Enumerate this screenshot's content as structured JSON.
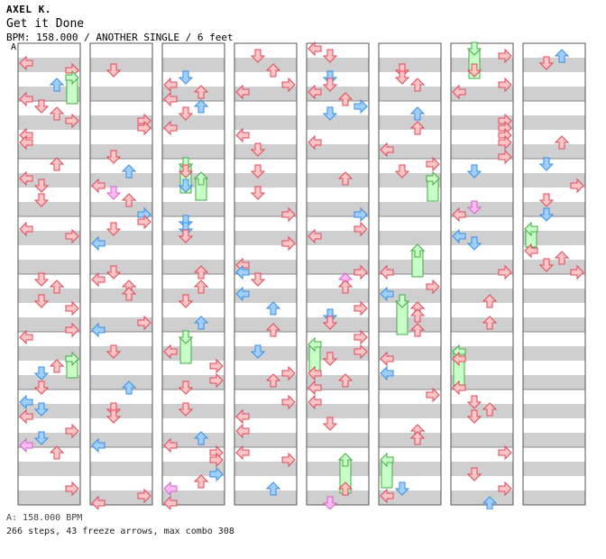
{
  "header": {
    "artist": "AXEL K.",
    "title": "Get it Done",
    "info": "BPM: 158.000 / ANOTHER SINGLE / 6 feet",
    "bpm_marker": "A"
  },
  "footer": {
    "bpm": "A: 158.000 BPM",
    "stats": "266 steps, 43 freeze arrows, max combo 308"
  },
  "colors": {
    "normal_arrow_fill": "#ffc4c4",
    "normal_arrow_stroke": "#e0475a",
    "blue_arrow_fill": "#9fcfff",
    "blue_arrow_stroke": "#3a8ee0",
    "pink_arrow_fill": "#ffb8f0",
    "pink_arrow_stroke": "#d064d0",
    "freeze_fill": "#c8ffc8",
    "freeze_stroke": "#44aa44",
    "stripe_gray": "#cfcfcf",
    "column_border": "#555555"
  },
  "chart_data": {
    "type": "step-chart",
    "columns": 8,
    "measures_per_column": 8,
    "lanes": [
      "left",
      "down",
      "up",
      "right"
    ],
    "arrows": [
      [
        0,
        0,
        2,
        "r"
      ],
      [
        0,
        0,
        1,
        "r"
      ],
      [
        0,
        1,
        2,
        "r"
      ],
      [
        0,
        1,
        3,
        "r"
      ],
      [
        0,
        2,
        1,
        "r"
      ],
      [
        0,
        2,
        3,
        "r"
      ],
      [
        0,
        3,
        2,
        "r"
      ],
      [
        0,
        3,
        3,
        "r"
      ],
      [
        1,
        0,
        0,
        "r"
      ],
      [
        1,
        0,
        1,
        "b"
      ],
      [
        1,
        1,
        3,
        "r"
      ],
      [
        1,
        1,
        1,
        "r"
      ],
      [
        1,
        2,
        0,
        "r"
      ],
      [
        1,
        2,
        2,
        "r"
      ],
      [
        1,
        3,
        2,
        "b"
      ],
      [
        1,
        3,
        0,
        "r"
      ],
      [
        2,
        0,
        0,
        "r"
      ],
      [
        2,
        0,
        3,
        "r"
      ],
      [
        2,
        1,
        1,
        "r"
      ],
      [
        2,
        1,
        2,
        "b"
      ],
      [
        2,
        2,
        3,
        "r"
      ],
      [
        2,
        2,
        0,
        "r"
      ],
      [
        2,
        3,
        1,
        "r"
      ],
      [
        2,
        3,
        2,
        "r"
      ],
      [
        3,
        0,
        2,
        "r"
      ],
      [
        3,
        0,
        0,
        "r"
      ],
      [
        3,
        1,
        1,
        "r"
      ],
      [
        3,
        1,
        3,
        "r"
      ],
      [
        3,
        2,
        2,
        "b"
      ],
      [
        3,
        2,
        0,
        "r"
      ],
      [
        3,
        3,
        1,
        "r"
      ],
      [
        3,
        3,
        3,
        "r"
      ],
      [
        4,
        0,
        0,
        "r"
      ],
      [
        4,
        0,
        3,
        "b"
      ],
      [
        4,
        1,
        2,
        "r"
      ],
      [
        4,
        1,
        1,
        "r"
      ],
      [
        4,
        2,
        0,
        "r"
      ],
      [
        4,
        2,
        3,
        "r"
      ],
      [
        4,
        3,
        1,
        "b"
      ],
      [
        4,
        3,
        2,
        "r"
      ],
      [
        5,
        0,
        1,
        "b"
      ],
      [
        5,
        0,
        3,
        "r"
      ],
      [
        5,
        1,
        0,
        "r"
      ],
      [
        5,
        1,
        2,
        "r"
      ],
      [
        5,
        2,
        3,
        "r"
      ],
      [
        5,
        2,
        1,
        "r"
      ],
      [
        5,
        3,
        0,
        "r"
      ],
      [
        5,
        3,
        2,
        "r"
      ],
      [
        6,
        0,
        0,
        "r"
      ],
      [
        6,
        0,
        2,
        "b"
      ],
      [
        6,
        1,
        1,
        "r"
      ],
      [
        6,
        1,
        3,
        "r"
      ],
      [
        6,
        2,
        2,
        "r"
      ],
      [
        6,
        2,
        0,
        "r"
      ],
      [
        6,
        3,
        3,
        "b"
      ],
      [
        6,
        3,
        1,
        "r"
      ],
      [
        7,
        0,
        0,
        "r"
      ],
      [
        7,
        0,
        3,
        "b"
      ],
      [
        7,
        1,
        2,
        "r"
      ],
      [
        7,
        1,
        1,
        "r"
      ],
      [
        7,
        2,
        1,
        "r"
      ],
      [
        7,
        2,
        3,
        "r"
      ],
      [
        7,
        3,
        0,
        "b"
      ],
      [
        7,
        3,
        2,
        "r"
      ]
    ]
  }
}
